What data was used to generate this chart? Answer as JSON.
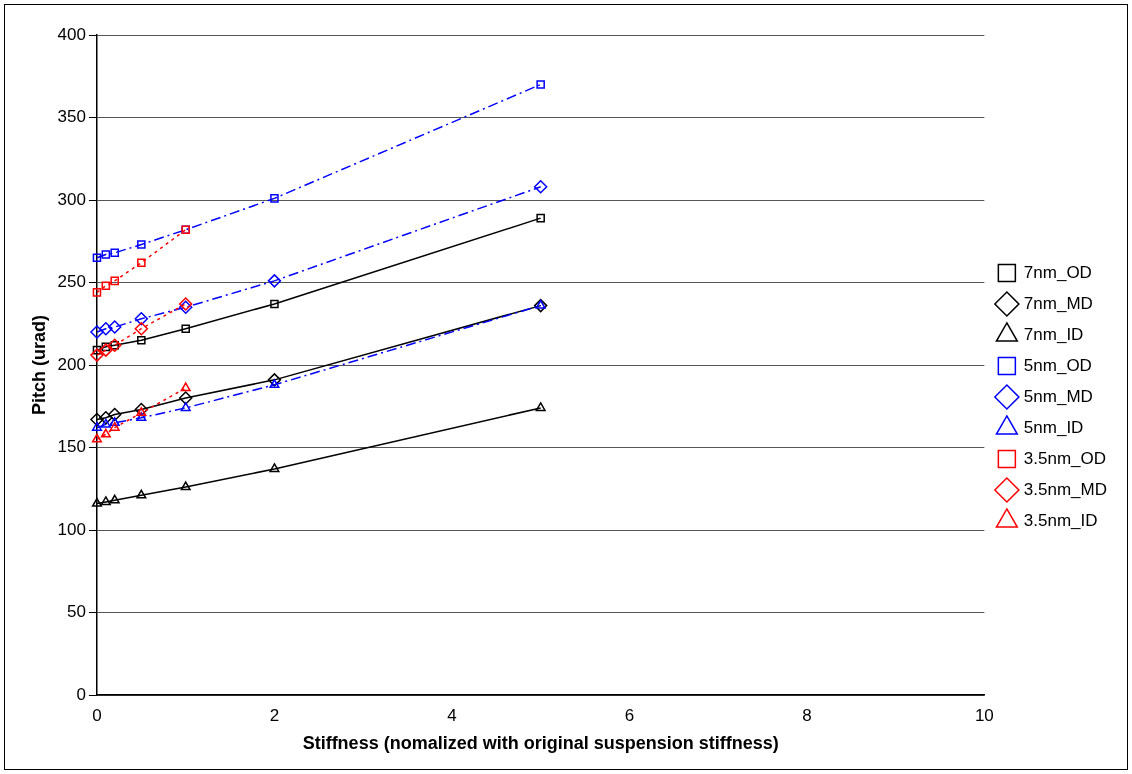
{
  "chart_data": {
    "type": "line",
    "xlabel": "Stiffness (nomalized with original suspension stiffness)",
    "ylabel": "Pitch (urad)",
    "xlim": [
      0,
      10
    ],
    "xticks": [
      0,
      2,
      4,
      6,
      8,
      10
    ],
    "ylim": [
      0,
      400
    ],
    "yticks": [
      0,
      50,
      100,
      150,
      200,
      250,
      300,
      350,
      400
    ],
    "grid": "y",
    "legend": "right",
    "series": [
      {
        "name": "7nm_OD",
        "color": "#000000",
        "marker": "square",
        "line_style": "solid",
        "x": [
          0,
          0.1,
          0.2,
          0.5,
          1,
          2,
          5
        ],
        "values": [
          209,
          211,
          212,
          215,
          222,
          237,
          289
        ]
      },
      {
        "name": "7nm_MD",
        "color": "#000000",
        "marker": "diamond",
        "line_style": "solid",
        "x": [
          0,
          0.1,
          0.2,
          0.5,
          1,
          2,
          5
        ],
        "values": [
          167,
          168,
          170,
          173,
          180,
          191,
          236
        ]
      },
      {
        "name": "7nm_ID",
        "color": "#000000",
        "marker": "triangle",
        "line_style": "solid",
        "x": [
          0,
          0.1,
          0.2,
          0.5,
          1,
          2,
          5
        ],
        "values": [
          116,
          117,
          118,
          121,
          126,
          137,
          174
        ]
      },
      {
        "name": "5nm_OD",
        "color": "#0000ff",
        "marker": "square",
        "line_style": "dashed",
        "x": [
          0,
          0.1,
          0.2,
          0.5,
          1,
          2,
          5
        ],
        "values": [
          265,
          267,
          268,
          273,
          282,
          301,
          370
        ]
      },
      {
        "name": "5nm_MD",
        "color": "#0000ff",
        "marker": "diamond",
        "line_style": "dashed",
        "x": [
          0,
          0.1,
          0.2,
          0.5,
          1,
          2,
          5
        ],
        "values": [
          220,
          222,
          223,
          228,
          235,
          251,
          308
        ]
      },
      {
        "name": "5nm_ID",
        "color": "#0000ff",
        "marker": "triangle",
        "line_style": "dashed",
        "x": [
          0,
          0.1,
          0.2,
          0.5,
          1,
          2,
          5
        ],
        "values": [
          162,
          164,
          165,
          168,
          174,
          188,
          236
        ]
      },
      {
        "name": "3.5nm_OD",
        "color": "#ff0000",
        "marker": "square",
        "line_style": "dotted",
        "x": [
          0,
          0.1,
          0.2,
          0.5,
          1
        ],
        "values": [
          244,
          248,
          251,
          262,
          282
        ]
      },
      {
        "name": "3.5nm_MD",
        "color": "#ff0000",
        "marker": "diamond",
        "line_style": "dotted",
        "x": [
          0,
          0.1,
          0.2,
          0.5,
          1
        ],
        "values": [
          206,
          209,
          212,
          222,
          237
        ]
      },
      {
        "name": "3.5nm_ID",
        "color": "#ff0000",
        "marker": "triangle",
        "line_style": "dotted",
        "x": [
          0,
          0.1,
          0.2,
          0.5,
          1
        ],
        "values": [
          155,
          158,
          162,
          171,
          186
        ]
      }
    ]
  }
}
